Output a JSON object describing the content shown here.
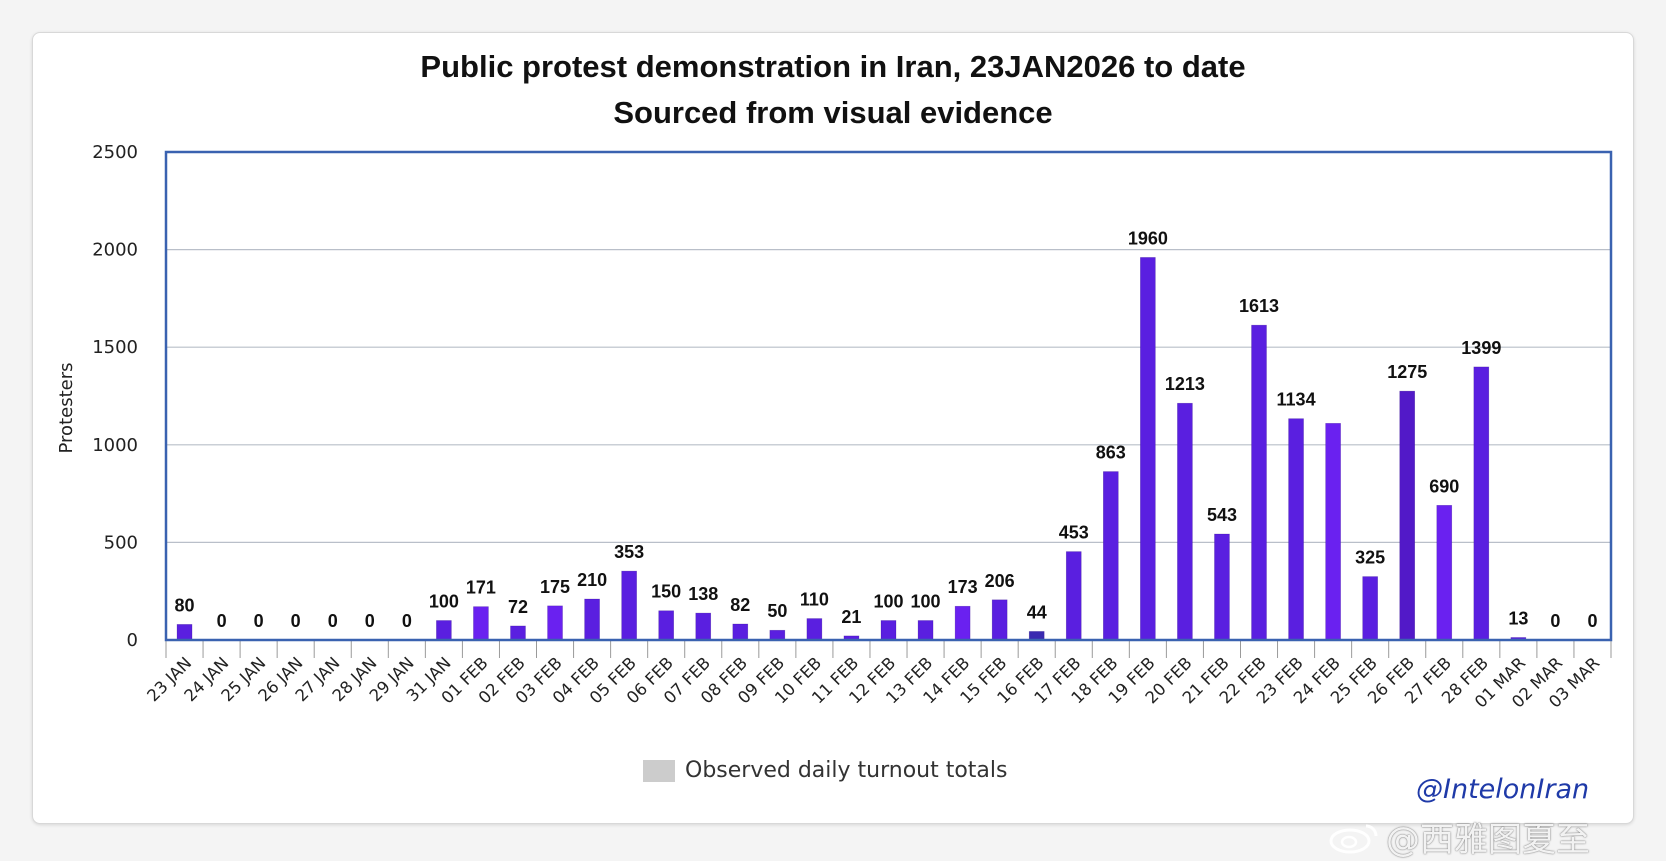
{
  "chart_data": {
    "type": "bar",
    "title": "Public protest demonstration in Iran, 23JAN2026 to date",
    "subtitle": "Sourced from visual evidence",
    "xlabel": "",
    "ylabel": "Protesters",
    "ylim": [
      0,
      2500
    ],
    "yticks": [
      0,
      500,
      1000,
      1500,
      2000,
      2500
    ],
    "grid": true,
    "legend": "bottom-center",
    "series": [
      {
        "name": "Observed daily turnout totals",
        "color": "#cccccc",
        "values": [
          80,
          0,
          0,
          0,
          0,
          0,
          0,
          100,
          171,
          72,
          175,
          210,
          353,
          150,
          138,
          82,
          50,
          110,
          21,
          100,
          100,
          173,
          206,
          44,
          453,
          863,
          1960,
          1213,
          543,
          1613,
          1134,
          1110,
          325,
          1275,
          690,
          1399,
          13,
          0,
          0
        ],
        "labels": [
          "80",
          "0",
          "0",
          "0",
          "0",
          "0",
          "0",
          "100",
          "171",
          "72",
          "175",
          "210",
          "353",
          "150",
          "138",
          "82",
          "50",
          "110",
          "21",
          "100",
          "100",
          "173",
          "206",
          "44",
          "453",
          "863",
          "1960",
          "1213",
          "543",
          "1613",
          "1134",
          "",
          "325",
          "1275",
          "690",
          "1399",
          "13",
          "0",
          "0"
        ]
      }
    ],
    "categories": [
      "23 JAN",
      "24 JAN",
      "25 JAN",
      "26 JAN",
      "27 JAN",
      "28 JAN",
      "29 JAN",
      "31 JAN",
      "01 FEB",
      "02 FEB",
      "03 FEB",
      "04 FEB",
      "05 FEB",
      "06 FEB",
      "07 FEB",
      "08 FEB",
      "09 FEB",
      "10 FEB",
      "11 FEB",
      "12 FEB",
      "13 FEB",
      "14 FEB",
      "15 FEB",
      "16 FEB",
      "17 FEB",
      "18 FEB",
      "19 FEB",
      "20 FEB",
      "21 FEB",
      "22 FEB",
      "23 FEB",
      "24 FEB",
      "25 FEB",
      "26 FEB",
      "27 FEB",
      "28 FEB",
      "01 MAR",
      "02 MAR",
      "03 MAR"
    ],
    "bar_colors": [
      "#5a1fe0",
      "#5a1fe0",
      "#5a1fe0",
      "#5a1fe0",
      "#5a1fe0",
      "#5a1fe0",
      "#5a1fe0",
      "#5a1fe0",
      "#6a21f0",
      "#5a1fe0",
      "#6a21f0",
      "#5a1fe0",
      "#5a1fe0",
      "#5a1fe0",
      "#5a1fe0",
      "#5a1fe0",
      "#5a1fe0",
      "#5a1fe0",
      "#5a1fe0",
      "#5a1fe0",
      "#5a1fe0",
      "#6a21f0",
      "#5a1fe0",
      "#3a2ab0",
      "#5a1fe0",
      "#5a1fe0",
      "#5a1fe0",
      "#5a1fe0",
      "#5a1fe0",
      "#5a1fe0",
      "#5a1fe0",
      "#6a21f0",
      "#5a1fe0",
      "#5219c8",
      "#6a21f0",
      "#5a1fe0",
      "#5a1fe0",
      "#5a1fe0",
      "#5a1fe0"
    ]
  },
  "colors": {
    "plot_border": "#3a62b0",
    "gridline": "#b9bfc9",
    "bar": "#5a1fe0",
    "handle": "#1f3aa8"
  },
  "handle": "@IntelonIran",
  "watermark": "@西雅图夏至"
}
